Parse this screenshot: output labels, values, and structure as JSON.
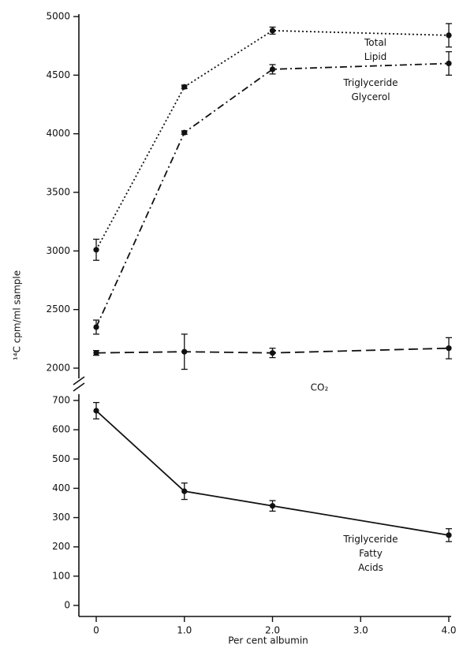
{
  "chart_data": [
    {
      "type": "line",
      "ylabel": "¹⁴C cpm/ml sample",
      "ylim": [
        2000,
        5000
      ],
      "yticks": [
        2000,
        2500,
        3000,
        3500,
        4000,
        4500,
        5000
      ],
      "x": [
        0,
        1,
        2,
        4
      ],
      "xlim": [
        0,
        4
      ],
      "series": [
        {
          "name": "Total Lipid",
          "color": "#111111",
          "dash": "dotted",
          "values": [
            3010,
            4400,
            4880,
            4840
          ],
          "errors": [
            90,
            15,
            30,
            100
          ]
        },
        {
          "name": "Triglyceride Glycerol",
          "color": "#111111",
          "dash": "dash-dot",
          "values": [
            2350,
            4010,
            4550,
            4600
          ],
          "errors": [
            60,
            15,
            40,
            100
          ]
        },
        {
          "name": "CO₂",
          "color": "#111111",
          "dash": "dashed",
          "values": [
            2130,
            2140,
            2130,
            2170
          ],
          "errors": [
            20,
            150,
            40,
            90
          ]
        }
      ]
    },
    {
      "type": "line",
      "xlabel": "Per cent albumin",
      "ylim": [
        0,
        700
      ],
      "yticks": [
        0,
        100,
        200,
        300,
        400,
        500,
        600,
        700
      ],
      "x": [
        0,
        1,
        2,
        4
      ],
      "xlim": [
        0,
        4
      ],
      "xticks": [
        0,
        {
          "value": 1,
          "label": "1.0"
        },
        {
          "value": 2,
          "label": "2.0"
        },
        {
          "value": 3,
          "label": "3.0"
        },
        {
          "value": 4,
          "label": "4.0"
        }
      ],
      "series": [
        {
          "name": "Triglyceride Fatty Acids",
          "color": "#111111",
          "dash": "solid",
          "values": [
            665,
            390,
            340,
            240
          ],
          "errors": [
            28,
            28,
            18,
            22
          ]
        }
      ]
    }
  ]
}
